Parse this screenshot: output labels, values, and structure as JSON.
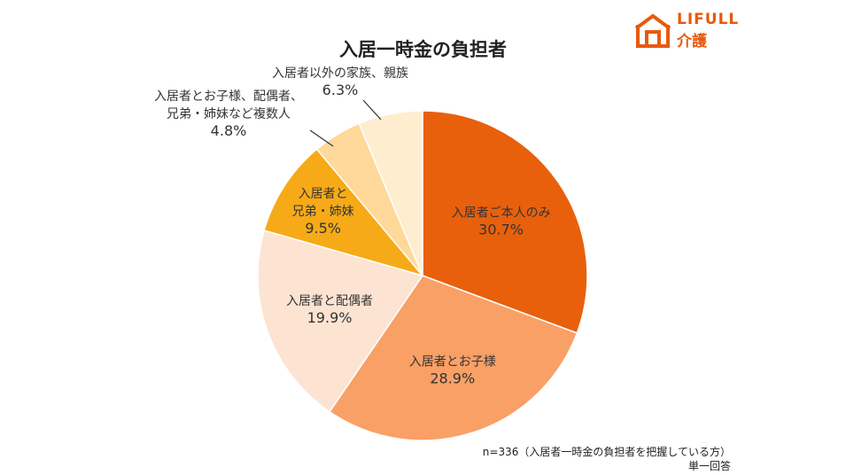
{
  "chart_data": {
    "type": "pie",
    "title": "入居一時金の負担者",
    "slices": [
      {
        "label_lines": [
          "入居者ご本人のみ"
        ],
        "value": 30.7,
        "value_label": "30.7%",
        "color": "#e8600c"
      },
      {
        "label_lines": [
          "入居者とお子様"
        ],
        "value": 28.9,
        "value_label": "28.9%",
        "color": "#f9a066"
      },
      {
        "label_lines": [
          "入居者と配偶者"
        ],
        "value": 19.9,
        "value_label": "19.9%",
        "color": "#fde3d2"
      },
      {
        "label_lines": [
          "入居者と",
          "兄弟・姉妹"
        ],
        "value": 9.5,
        "value_label": "9.5%",
        "color": "#f7aa17"
      },
      {
        "label_lines": [
          "入居者とお子様、配偶者、",
          "兄弟・姉妹など複数人"
        ],
        "value": 4.8,
        "value_label": "4.8%",
        "color": "#fed999"
      },
      {
        "label_lines": [
          "入居者以外の家族、親族"
        ],
        "value": 6.3,
        "value_label": "6.3%",
        "color": "#feedcf"
      }
    ]
  },
  "logo": {
    "en": "LIFULL",
    "ja": "介護",
    "color": "#e8590c"
  },
  "footnote": {
    "sample": "n=336（入居者一時金の負担者を把握している方）",
    "answer_type": "単一回答"
  }
}
